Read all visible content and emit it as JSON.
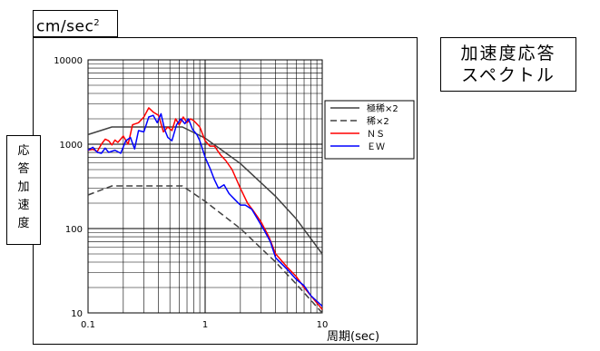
{
  "header": {
    "unit_base": "cm/sec",
    "unit_power": "2",
    "title_line1": "加速度応答",
    "title_line2": "スペクトル"
  },
  "ylabel_chars": [
    "応",
    "答",
    "加",
    "速",
    "度"
  ],
  "chart_data": {
    "type": "line",
    "xscale": "log",
    "yscale": "log",
    "xlim": [
      0.1,
      10
    ],
    "ylim": [
      10,
      10000
    ],
    "x_ticks": [
      "0.1",
      "1",
      "10"
    ],
    "y_ticks": [
      "10",
      "100",
      "1000",
      "10000"
    ],
    "xlabel": "周期(sec)",
    "grid": true,
    "legend_position": "right",
    "series": [
      {
        "name": "極稀×2",
        "color": "#404040",
        "dash": "solid",
        "points": [
          [
            0.1,
            1300
          ],
          [
            0.16,
            1600
          ],
          [
            0.64,
            1600
          ],
          [
            1.0,
            1180
          ],
          [
            2.0,
            590
          ],
          [
            4.0,
            240
          ],
          [
            6.0,
            130
          ],
          [
            10.0,
            50
          ]
        ]
      },
      {
        "name": "稀×2",
        "color": "#404040",
        "dash": "dashed",
        "points": [
          [
            0.1,
            250
          ],
          [
            0.16,
            320
          ],
          [
            0.64,
            320
          ],
          [
            1.0,
            210
          ],
          [
            2.0,
            100
          ],
          [
            4.0,
            40
          ],
          [
            6.0,
            22
          ],
          [
            10.0,
            10
          ]
        ]
      },
      {
        "name": "ＮＳ",
        "color": "#ff0000",
        "dash": "solid",
        "points": [
          [
            0.1,
            850
          ],
          [
            0.11,
            870
          ],
          [
            0.12,
            820
          ],
          [
            0.13,
            1000
          ],
          [
            0.14,
            1150
          ],
          [
            0.15,
            1100
          ],
          [
            0.16,
            980
          ],
          [
            0.17,
            1120
          ],
          [
            0.18,
            1050
          ],
          [
            0.2,
            1250
          ],
          [
            0.22,
            1000
          ],
          [
            0.24,
            1700
          ],
          [
            0.27,
            1800
          ],
          [
            0.3,
            2100
          ],
          [
            0.33,
            2700
          ],
          [
            0.36,
            2400
          ],
          [
            0.4,
            2200
          ],
          [
            0.44,
            1400
          ],
          [
            0.48,
            1600
          ],
          [
            0.52,
            1450
          ],
          [
            0.56,
            2000
          ],
          [
            0.6,
            1700
          ],
          [
            0.65,
            2100
          ],
          [
            0.7,
            1800
          ],
          [
            0.75,
            2000
          ],
          [
            0.8,
            1900
          ],
          [
            0.9,
            1600
          ],
          [
            1.0,
            1100
          ],
          [
            1.1,
            950
          ],
          [
            1.2,
            950
          ],
          [
            1.35,
            750
          ],
          [
            1.5,
            640
          ],
          [
            1.7,
            500
          ],
          [
            2.0,
            300
          ],
          [
            2.3,
            200
          ],
          [
            2.6,
            160
          ],
          [
            3.0,
            120
          ],
          [
            3.5,
            80
          ],
          [
            4.0,
            50
          ],
          [
            5.0,
            35
          ],
          [
            6.0,
            27
          ],
          [
            7.0,
            20
          ],
          [
            8.0,
            16
          ],
          [
            10.0,
            11
          ]
        ]
      },
      {
        "name": "ＥＷ",
        "color": "#0000ff",
        "dash": "solid",
        "points": [
          [
            0.1,
            850
          ],
          [
            0.11,
            920
          ],
          [
            0.12,
            800
          ],
          [
            0.13,
            780
          ],
          [
            0.14,
            900
          ],
          [
            0.15,
            800
          ],
          [
            0.17,
            850
          ],
          [
            0.19,
            780
          ],
          [
            0.21,
            1100
          ],
          [
            0.23,
            1200
          ],
          [
            0.25,
            880
          ],
          [
            0.27,
            1450
          ],
          [
            0.3,
            1400
          ],
          [
            0.33,
            2100
          ],
          [
            0.36,
            2200
          ],
          [
            0.39,
            1800
          ],
          [
            0.42,
            2300
          ],
          [
            0.45,
            1500
          ],
          [
            0.48,
            1200
          ],
          [
            0.52,
            1100
          ],
          [
            0.57,
            1700
          ],
          [
            0.62,
            2000
          ],
          [
            0.67,
            1750
          ],
          [
            0.72,
            2000
          ],
          [
            0.78,
            1500
          ],
          [
            0.85,
            1300
          ],
          [
            0.9,
            1100
          ],
          [
            1.0,
            700
          ],
          [
            1.1,
            520
          ],
          [
            1.2,
            380
          ],
          [
            1.3,
            300
          ],
          [
            1.45,
            330
          ],
          [
            1.6,
            260
          ],
          [
            1.8,
            220
          ],
          [
            2.0,
            190
          ],
          [
            2.2,
            190
          ],
          [
            2.5,
            170
          ],
          [
            2.8,
            130
          ],
          [
            3.2,
            95
          ],
          [
            3.6,
            70
          ],
          [
            4.0,
            45
          ],
          [
            5.0,
            33
          ],
          [
            6.0,
            25
          ],
          [
            7.0,
            21
          ],
          [
            8.0,
            16
          ],
          [
            10.0,
            12
          ]
        ]
      }
    ]
  }
}
